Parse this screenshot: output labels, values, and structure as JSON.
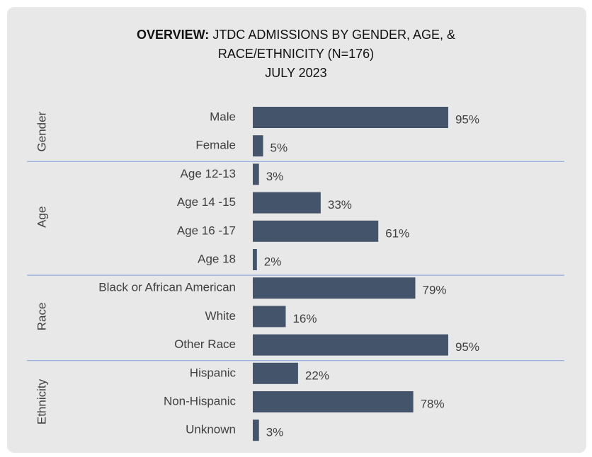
{
  "chart_data": {
    "type": "bar",
    "orientation": "horizontal",
    "title_prefix": "OVERVIEW:",
    "title": "JTDC ADMISSIONS BY GENDER, AGE, & RACE/ETHNICITY (N=176)",
    "subtitle": "JULY 2023",
    "color": "#44546a",
    "xlim": [
      0,
      100
    ],
    "groups": [
      {
        "name": "Gender",
        "categories": [
          "Male",
          "Female"
        ],
        "values": [
          95,
          5
        ],
        "value_labels": [
          "95%",
          "5%"
        ]
      },
      {
        "name": "Age",
        "categories": [
          "Age 12-13",
          "Age 14 -15",
          "Age 16 -17",
          "Age 18"
        ],
        "values": [
          3,
          33,
          61,
          2
        ],
        "value_labels": [
          "3%",
          "33%",
          "61%",
          "2%"
        ]
      },
      {
        "name": "Race",
        "categories": [
          "Black or African American",
          "White",
          "Other Race"
        ],
        "values": [
          79,
          16,
          95
        ],
        "value_labels": [
          "79%",
          "16%",
          "95%"
        ]
      },
      {
        "name": "Ethnicity",
        "categories": [
          "Hispanic",
          "Non-Hispanic",
          "Unknown"
        ],
        "values": [
          22,
          78,
          3
        ],
        "value_labels": [
          "22%",
          "78%",
          "3%"
        ]
      }
    ]
  }
}
